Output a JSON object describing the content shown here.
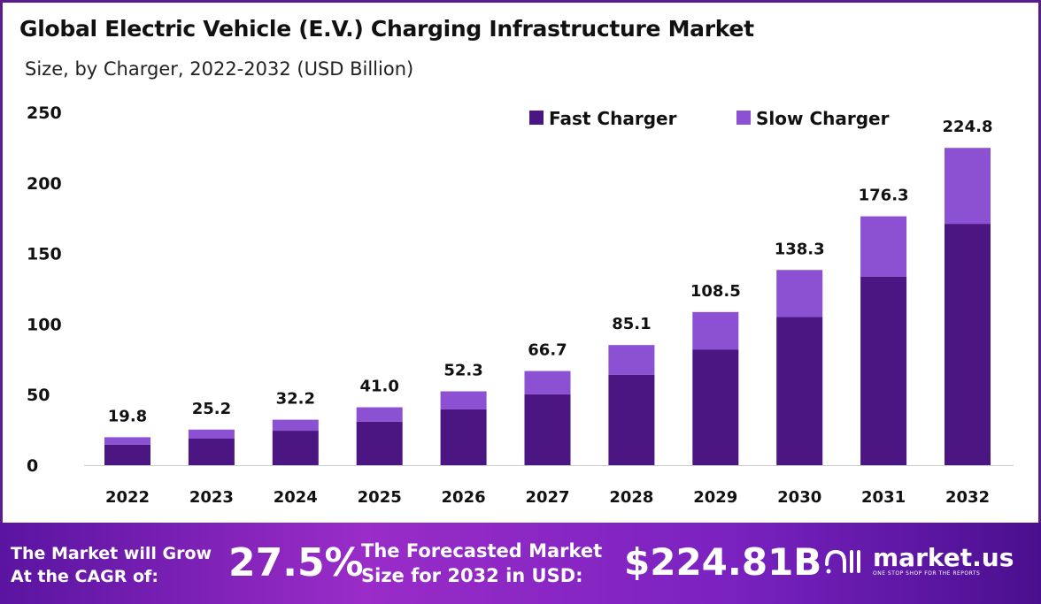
{
  "chart_data": {
    "type": "bar",
    "stacked": true,
    "title": "Global Electric Vehicle (E.V.) Charging Infrastructure Market",
    "subtitle": "Size, by Charger, 2022-2032 (USD Billion)",
    "xlabel": "",
    "ylabel": "",
    "ylim": [
      0,
      250
    ],
    "yticks": [
      "0",
      "50",
      "100",
      "150",
      "200",
      "250"
    ],
    "legend_position": "top-right",
    "categories": [
      "2022",
      "2023",
      "2024",
      "2025",
      "2026",
      "2027",
      "2028",
      "2029",
      "2030",
      "2031",
      "2032"
    ],
    "series": [
      {
        "name": "Fast Charger",
        "color": "#4b1682",
        "values": [
          14.5,
          18.8,
          24.4,
          30.8,
          39.5,
          50.2,
          64.1,
          82.0,
          105.0,
          133.5,
          171.0
        ]
      },
      {
        "name": "Slow Charger",
        "color": "#8c50d2",
        "values": [
          5.3,
          6.4,
          7.8,
          10.2,
          12.8,
          16.5,
          21.0,
          26.5,
          33.3,
          42.8,
          53.8
        ]
      }
    ],
    "totals": [
      "19.8",
      "25.2",
      "32.2",
      "41.0",
      "52.3",
      "66.7",
      "85.1",
      "108.5",
      "138.3",
      "176.3",
      "224.8"
    ]
  },
  "banner": {
    "cagr_label_1": "The Market will Grow",
    "cagr_label_2": "At the CAGR of:",
    "cagr_value": "27.5%",
    "forecast_label_1": "The Forecasted Market",
    "forecast_label_2": "Size for 2032 in USD:",
    "forecast_value": "$224.81B",
    "logo_name": "market.us",
    "logo_tagline": "ONE STOP SHOP FOR THE REPORTS"
  }
}
